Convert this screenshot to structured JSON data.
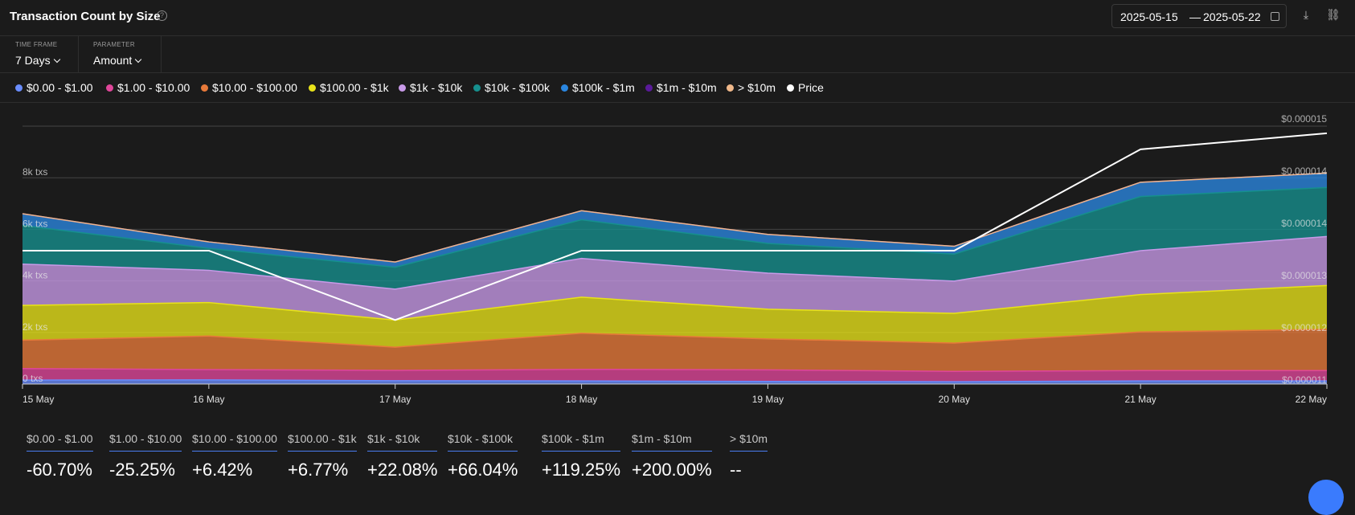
{
  "header": {
    "title": "Transaction Count by Size",
    "date_from": "2025-05-15",
    "date_sep": "—",
    "date_to": "2025-05-22"
  },
  "filters": [
    {
      "label": "TIME FRAME",
      "value": "7 Days"
    },
    {
      "label": "PARAMETER",
      "value": "Amount"
    }
  ],
  "chart_data": {
    "type": "area",
    "stacked": true,
    "x": [
      "15 May",
      "16 May",
      "17 May",
      "18 May",
      "19 May",
      "20 May",
      "21 May",
      "22 May"
    ],
    "y_left": {
      "ticks": [
        "0 txs",
        "2k txs",
        "4k txs",
        "6k txs",
        "8k txs"
      ],
      "values": [
        0,
        2000,
        4000,
        6000,
        8000
      ],
      "ylim": [
        0,
        10000
      ]
    },
    "y_right": {
      "ticks": [
        "$0.000011",
        "$0.000012",
        "$0.000013",
        "$0.000014",
        "$0.000014",
        "$0.000015"
      ],
      "ylim": [
        1.1e-05,
        1.6e-05
      ]
    },
    "series": [
      {
        "name": "$0.00 - $1.00",
        "color": "#6a8dff",
        "values": [
          150,
          160,
          130,
          120,
          100,
          90,
          120,
          120
        ]
      },
      {
        "name": "$1.00 - $10.00",
        "color": "#e0469a",
        "values": [
          450,
          400,
          400,
          450,
          450,
          400,
          400,
          400
        ]
      },
      {
        "name": "$10.00 - $100.00",
        "color": "#e87a3a",
        "values": [
          1100,
          1300,
          900,
          1400,
          1200,
          1100,
          1500,
          1600
        ]
      },
      {
        "name": "$100.00 - $1k",
        "color": "#e8e31a",
        "values": [
          1350,
          1300,
          1050,
          1400,
          1150,
          1150,
          1450,
          1700
        ]
      },
      {
        "name": "$1k - $10k",
        "color": "#c89ae8",
        "values": [
          1600,
          1250,
          1200,
          1500,
          1400,
          1250,
          1700,
          1900
        ]
      },
      {
        "name": "$10k - $100k",
        "color": "#16908e",
        "values": [
          1500,
          850,
          850,
          1500,
          1150,
          1050,
          2100,
          1900
        ]
      },
      {
        "name": "$100k - $1m",
        "color": "#2a86e0",
        "values": [
          450,
          250,
          200,
          350,
          350,
          300,
          550,
          550
        ]
      },
      {
        "name": "$1m - $10m",
        "color": "#5a1a9a",
        "values": [
          3,
          2,
          1,
          2,
          2,
          2,
          5,
          6
        ]
      },
      {
        "name": "> $10m",
        "color": "#f0b88a",
        "values": [
          0,
          0,
          0,
          0,
          0,
          0,
          0,
          0
        ]
      }
    ],
    "price": {
      "name": "Price",
      "color": "#ffffff",
      "values": [
        1.35e-05,
        1.35e-05,
        1.22e-05,
        1.35e-05,
        1.35e-05,
        1.35e-05,
        1.54e-05,
        1.57e-05
      ]
    },
    "legend": "top"
  },
  "stats": [
    {
      "label": "$0.00 - $1.00",
      "value": "-60.70%"
    },
    {
      "label": "$1.00 - $10.00",
      "value": "-25.25%"
    },
    {
      "label": "$10.00 - $100.00",
      "value": "+6.42%"
    },
    {
      "label": "$100.00 - $1k",
      "value": "+6.77%"
    },
    {
      "label": "$1k - $10k",
      "value": "+22.08%"
    },
    {
      "label": "$10k - $100k",
      "value": "+66.04%"
    },
    {
      "label": "$100k - $1m",
      "value": "+119.25%"
    },
    {
      "label": "$1m - $10m",
      "value": "+200.00%"
    },
    {
      "label": "> $10m",
      "value": "--"
    }
  ]
}
